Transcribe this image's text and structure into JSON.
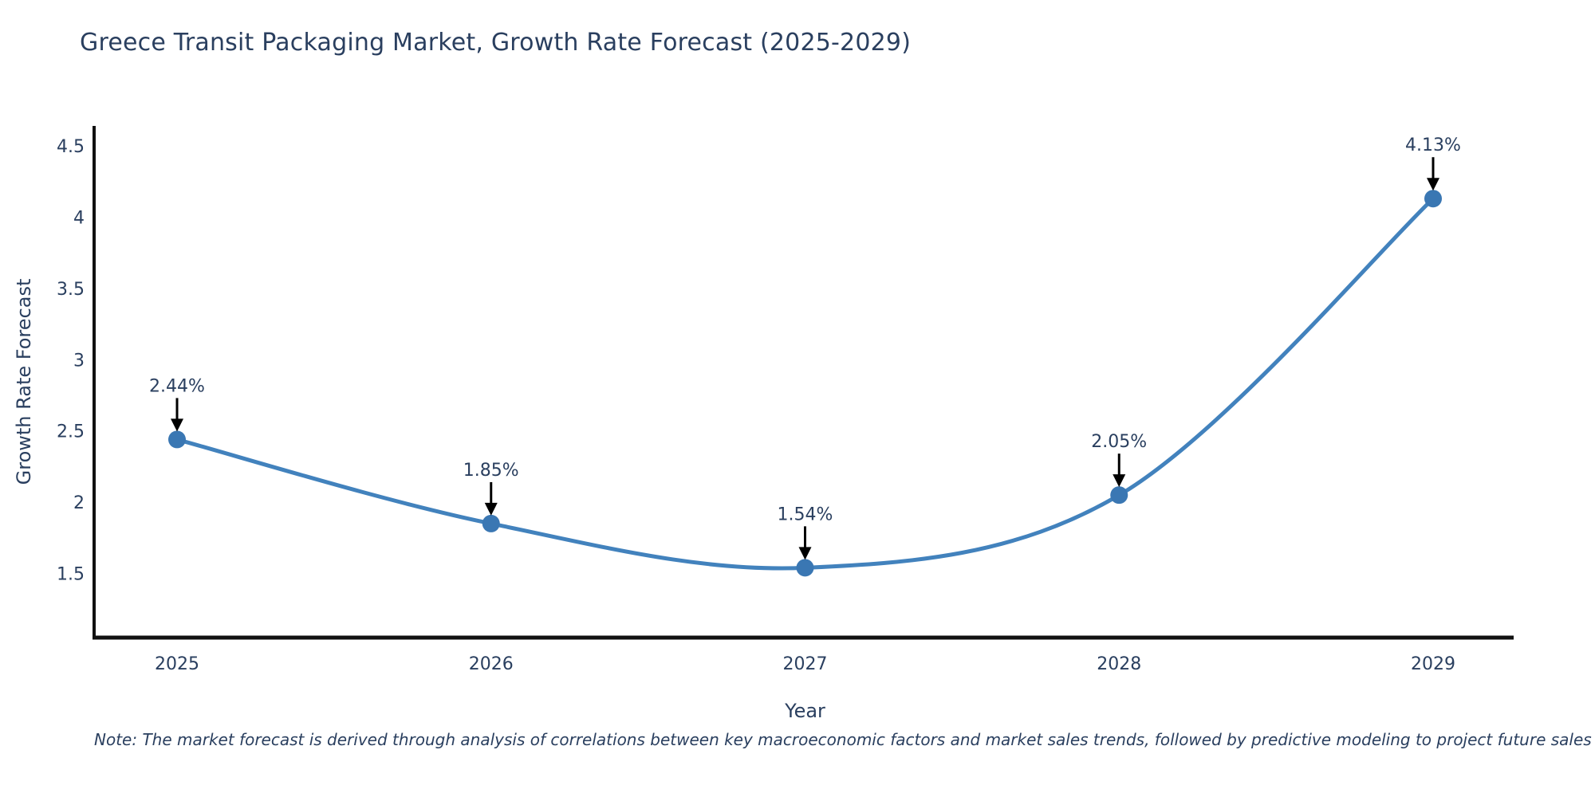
{
  "title": "Greece Transit Packaging Market, Growth Rate Forecast (2025-2029)",
  "note": "Note: The market forecast is derived through analysis of correlations between key macroeconomic factors and market sales trends, followed by predictive modeling to project future sales",
  "chart_data": {
    "type": "line",
    "line_shape": "spline",
    "title": "Greece Transit Packaging Market, Growth Rate Forecast (2025-2029)",
    "xlabel": "Year",
    "ylabel": "Growth Rate Forecast",
    "categories": [
      "2025",
      "2026",
      "2027",
      "2028",
      "2029"
    ],
    "values": [
      2.44,
      1.85,
      1.54,
      2.05,
      4.13
    ],
    "point_labels": [
      "2.44%",
      "1.85%",
      "1.54%",
      "2.05%",
      "4.13%"
    ],
    "yticks": [
      1.5,
      2,
      2.5,
      3,
      3.5,
      4,
      4.5
    ],
    "ylim": [
      1.05,
      4.64
    ],
    "grid": false,
    "legend": "none",
    "colors": {
      "line": "#4282bd",
      "marker": "#3a77b3",
      "axis": "#111111",
      "text": "#2a3f5f",
      "arrow": "#000000",
      "background": "#ffffff"
    }
  }
}
